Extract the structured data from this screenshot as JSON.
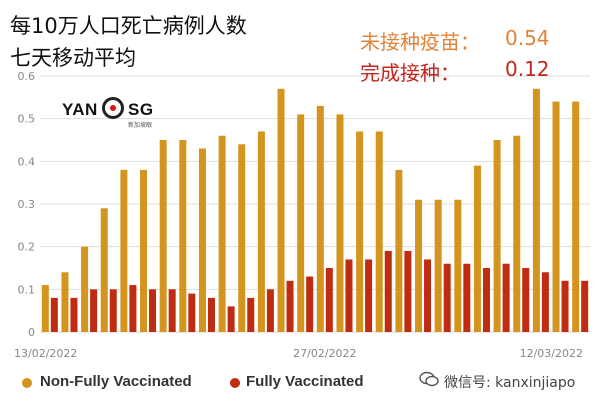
{
  "title": "每10万人口死亡病例人数",
  "subtitle": "七天移动平均",
  "stats": {
    "unvaccinated_label": "未接种疫苗：",
    "unvaccinated_value": "0.54",
    "vaccinated_label": "完成接种：",
    "vaccinated_value": "0.12"
  },
  "logo": {
    "text_left": "YAN",
    "text_right": "SG",
    "tagline": "新加坡眼"
  },
  "watermark": "微信号: kanxinjiapo",
  "colors": {
    "non_fully": "#d4951f",
    "fully": "#bf2c11",
    "grid": "#dddddd",
    "axis_text": "#888888",
    "stat_orange": "#e0833a",
    "stat_red": "#c0261c"
  },
  "chart_data": {
    "type": "bar",
    "ylim": [
      0,
      0.6
    ],
    "yticks": [
      "0",
      "0.1",
      "0.2",
      "0.3",
      "0.4",
      "0.5",
      "0.6"
    ],
    "grid": true,
    "legend_position": "bottom-left",
    "x_labels": [
      {
        "index": 0,
        "text": "13/02/2022"
      },
      {
        "index": 14,
        "text": "27/02/2022"
      },
      {
        "index": 27,
        "text": "12/03/2022"
      }
    ],
    "series": [
      {
        "name": "Non-Fully Vaccinated",
        "values": [
          0.11,
          0.14,
          0.2,
          0.29,
          0.38,
          0.38,
          0.45,
          0.45,
          0.43,
          0.46,
          0.44,
          0.47,
          0.57,
          0.51,
          0.53,
          0.51,
          0.47,
          0.47,
          0.38,
          0.31,
          0.31,
          0.31,
          0.39,
          0.45,
          0.46,
          0.57,
          0.54,
          0.54
        ]
      },
      {
        "name": "Fully Vaccinated",
        "values": [
          0.08,
          0.08,
          0.1,
          0.1,
          0.11,
          0.1,
          0.1,
          0.09,
          0.08,
          0.06,
          0.08,
          0.1,
          0.12,
          0.13,
          0.15,
          0.17,
          0.17,
          0.19,
          0.19,
          0.17,
          0.16,
          0.16,
          0.15,
          0.16,
          0.15,
          0.14,
          0.12,
          0.12
        ]
      }
    ]
  }
}
